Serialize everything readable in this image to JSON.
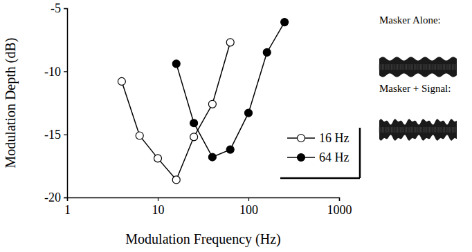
{
  "chart_data": {
    "type": "line",
    "x_label": "Modulation Frequency (Hz)",
    "y_label": "Modulation Depth (dB)",
    "log": "x",
    "grid": false,
    "legend": "right",
    "xlim": [
      1,
      1000
    ],
    "xticks": [
      1,
      10,
      100,
      1000
    ],
    "ylim": [
      -20,
      -5
    ],
    "yticks": [
      -20,
      -15,
      -10,
      -5
    ],
    "annotations": [
      "Masker Alone:",
      "Masker + Signal:"
    ],
    "series": [
      {
        "name": "16 Hz",
        "color": "#000000",
        "marker": "circle-open",
        "line_style": "solid",
        "x": [
          4,
          6.3,
          10,
          16,
          25,
          40,
          63
        ],
        "values": [
          -10.8,
          -15.1,
          -16.9,
          -18.6,
          -15.2,
          -12.6,
          -7.7
        ]
      },
      {
        "name": "64 Hz",
        "color": "#000000",
        "marker": "circle",
        "line_style": "solid",
        "x": [
          16,
          25,
          40,
          63,
          100,
          160,
          250
        ],
        "values": [
          -9.4,
          -14.1,
          -16.8,
          -16.2,
          -13.3,
          -8.5,
          -6.1
        ]
      }
    ]
  }
}
